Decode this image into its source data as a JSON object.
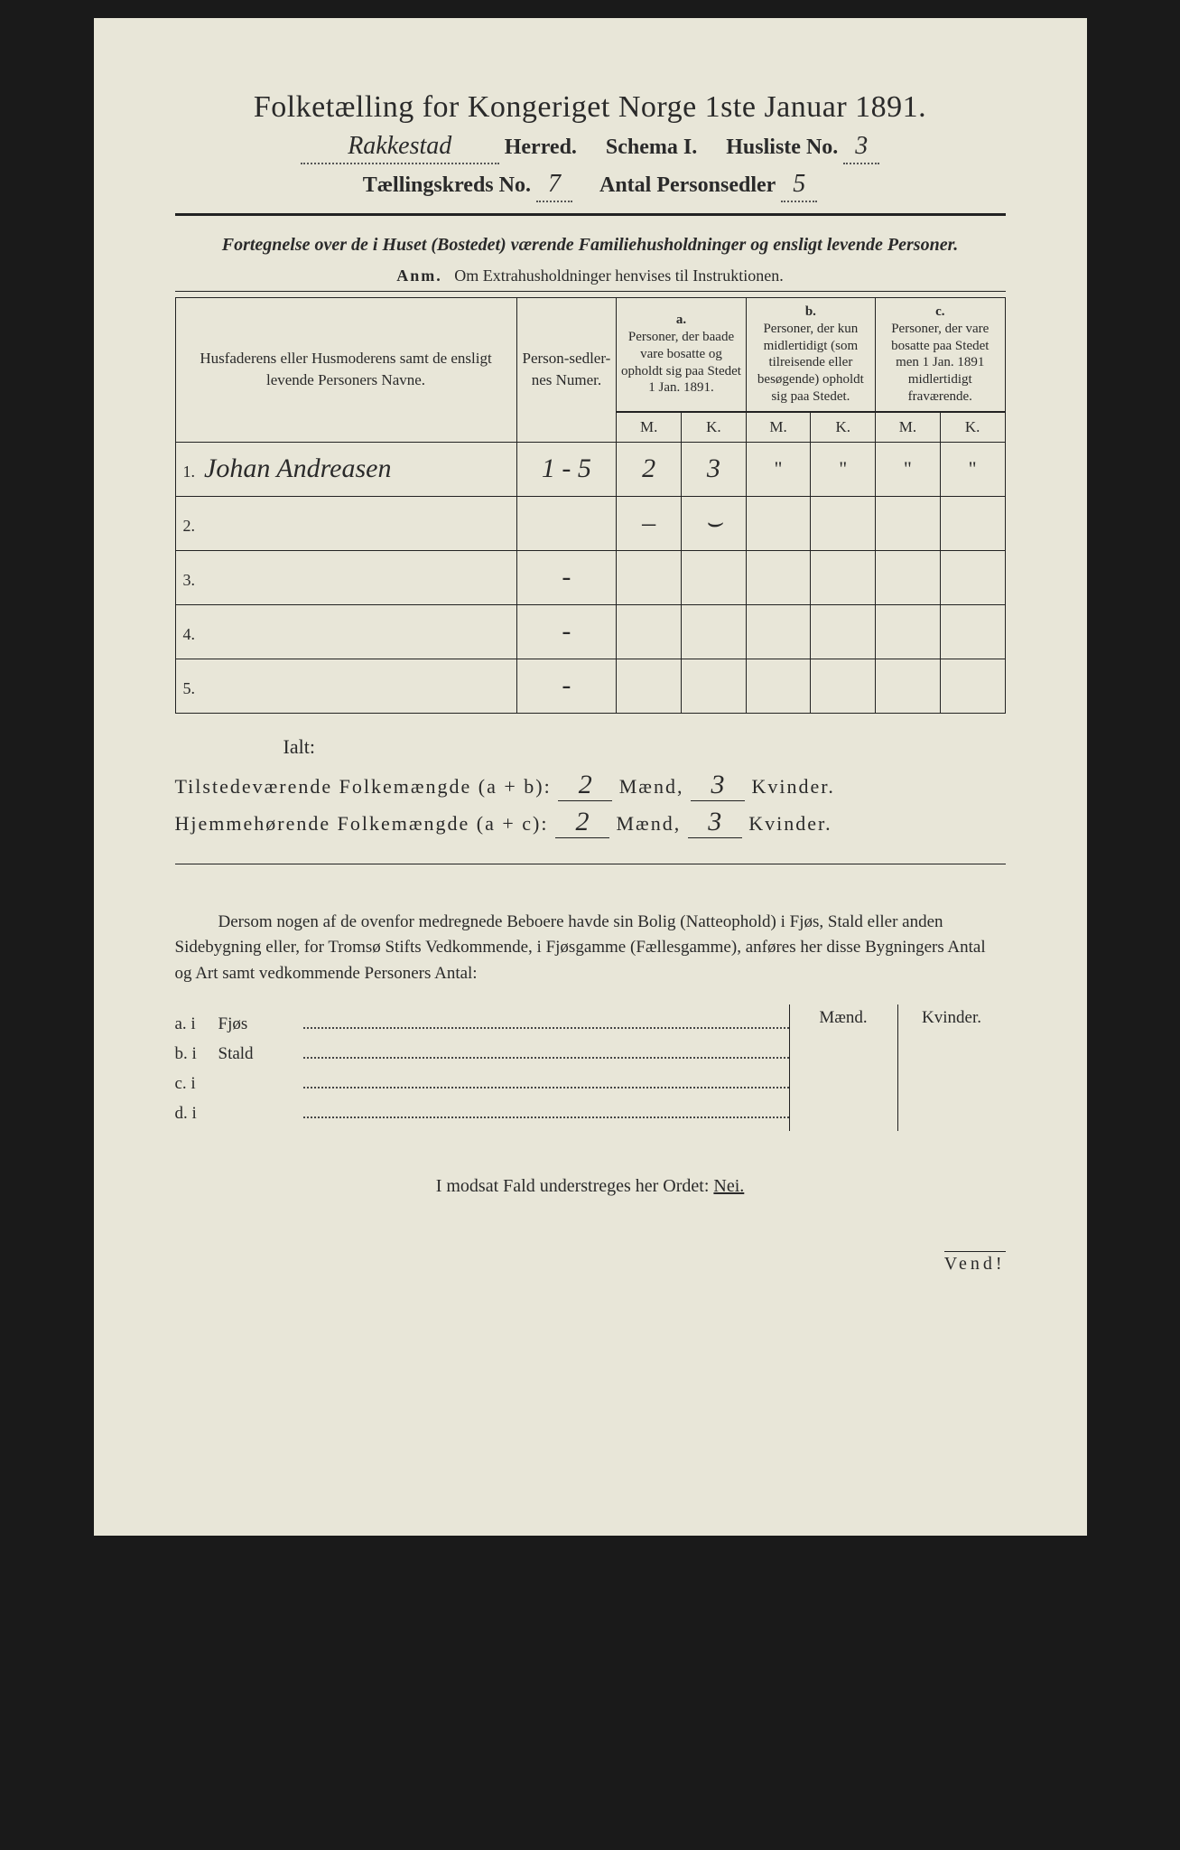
{
  "title": "Folketælling for Kongeriget Norge 1ste Januar 1891.",
  "header1": {
    "herred_value": "Rakkestad",
    "herred_label": "Herred.",
    "schema_label": "Schema I.",
    "husliste_label": "Husliste No.",
    "husliste_value": "3"
  },
  "header2": {
    "kreds_label": "Tællingskreds No.",
    "kreds_value": "7",
    "antal_label": "Antal Personsedler",
    "antal_value": "5"
  },
  "subtitle": "Fortegnelse over de i Huset (Bostedet) værende Familiehusholdninger og ensligt levende Personer.",
  "anm_label": "Anm.",
  "anm_text": "Om Extrahusholdninger henvises til Instruktionen.",
  "columns": {
    "name": "Husfaderens eller Husmoderens samt de ensligt levende Personers Navne.",
    "numer": "Person-sedler-nes Numer.",
    "a_label": "a.",
    "a_text": "Personer, der baade vare bosatte og opholdt sig paa Stedet 1 Jan. 1891.",
    "b_label": "b.",
    "b_text": "Personer, der kun midlertidigt (som tilreisende eller besøgende) opholdt sig paa Stedet.",
    "c_label": "c.",
    "c_text": "Personer, der vare bosatte paa Stedet men 1 Jan. 1891 midlertidigt fraværende.",
    "m": "M.",
    "k": "K."
  },
  "rows": [
    {
      "n": "1.",
      "name": "Johan Andreasen",
      "num": "1 - 5",
      "am": "2",
      "ak": "3",
      "bm": "\"",
      "bk": "\"",
      "cm": "\"",
      "ck": "\""
    },
    {
      "n": "2.",
      "name": "",
      "num": "",
      "am": "–",
      "ak": "⌣",
      "bm": "",
      "bk": "",
      "cm": "",
      "ck": ""
    },
    {
      "n": "3.",
      "name": "",
      "num": "-",
      "am": "",
      "ak": "",
      "bm": "",
      "bk": "",
      "cm": "",
      "ck": ""
    },
    {
      "n": "4.",
      "name": "",
      "num": "-",
      "am": "",
      "ak": "",
      "bm": "",
      "bk": "",
      "cm": "",
      "ck": ""
    },
    {
      "n": "5.",
      "name": "",
      "num": "-",
      "am": "",
      "ak": "",
      "bm": "",
      "bk": "",
      "cm": "",
      "ck": ""
    }
  ],
  "ialt": "Ialt:",
  "totals": {
    "line1_a": "Tilstedeværende Folkemængde (a + b):",
    "line1_m": "2",
    "line1_k": "3",
    "line2_a": "Hjemmehørende Folkemængde (a + c):",
    "line2_m": "2",
    "line2_k": "3",
    "maend": "Mænd,",
    "kvinder": "Kvinder."
  },
  "paragraph": "Dersom nogen af de ovenfor medregnede Beboere havde sin Bolig (Natteophold) i Fjøs, Stald eller anden Sidebygning eller, for Tromsø Stifts Vedkommende, i Fjøsgamme (Fællesgamme), anføres her disse Bygningers Antal og Art samt vedkommende Personers Antal:",
  "bottom": {
    "maend": "Mænd.",
    "kvinder": "Kvinder.",
    "rows": [
      {
        "lbl": "a.  i",
        "txt": "Fjøs"
      },
      {
        "lbl": "b.  i",
        "txt": "Stald"
      },
      {
        "lbl": "c.  i",
        "txt": ""
      },
      {
        "lbl": "d.  i",
        "txt": ""
      }
    ]
  },
  "modsat_a": "I modsat Fald understreges her Ordet:",
  "modsat_b": "Nei.",
  "vend": "Vend!"
}
